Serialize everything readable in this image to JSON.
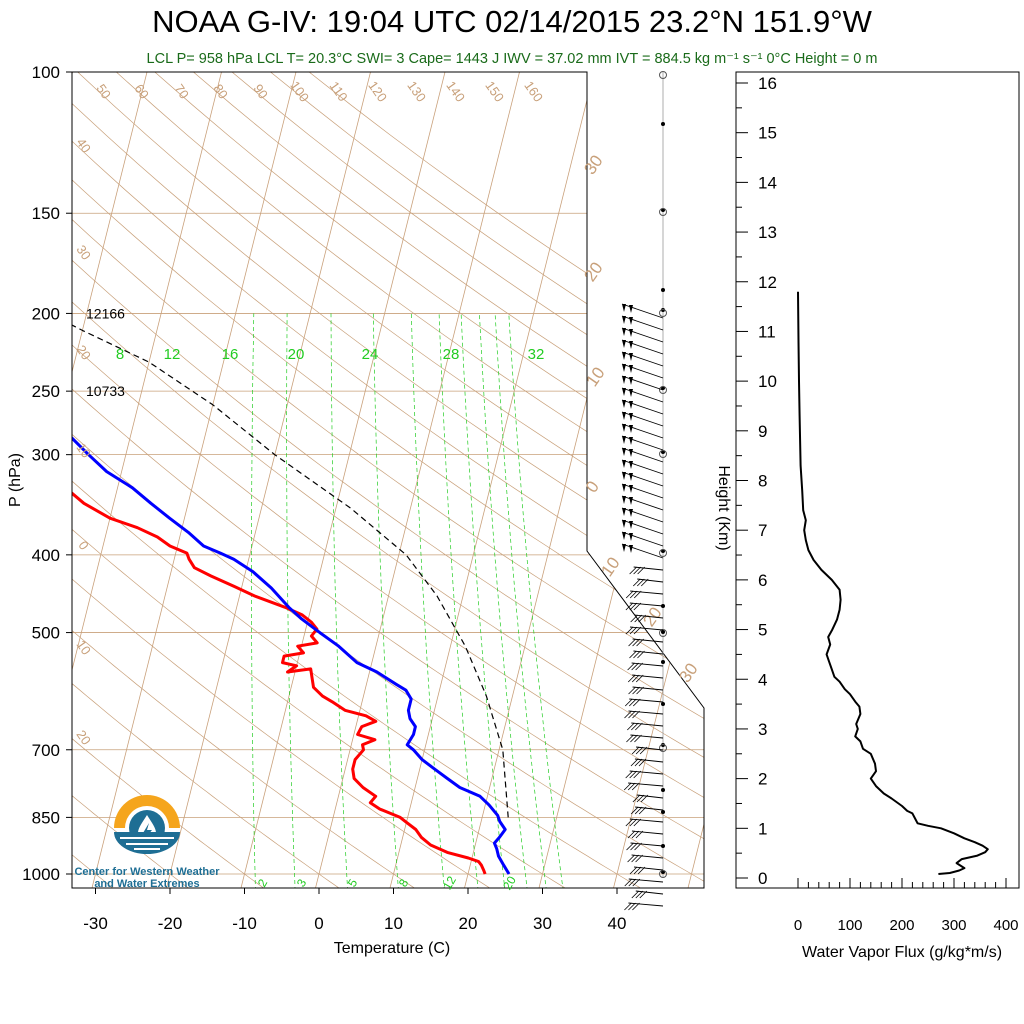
{
  "title_text": "NOAA G-IV: 19:04 UTC 02/14/2015  23.2°N 151.9°W",
  "subtitle": "LCL P= 958 hPa  LCL T= 20.3°C  SWI= 3  Cape= 1443 J  IWV = 37.02 mm  IVT = 884.5 kg m⁻¹ s⁻¹  0°C Height = 0 m",
  "logo": {
    "line1": "Center for Western Weather",
    "line2": "and Water Extremes"
  },
  "colors": {
    "temperature": "#ff0000",
    "dewpoint": "#0000ff",
    "parcel": "#000000",
    "isotherm_adiabat": "#c8a07a",
    "mixing_ratio": "#22cc22",
    "subtitle": "#1a6b1a",
    "logo_orange": "#f5a51c",
    "logo_blue": "#1e6e94"
  },
  "chart_data": [
    {
      "type": "line",
      "subtype": "skew-T log-P",
      "xlabel": "Temperature (C)",
      "ylabel": "P (hPa)",
      "x_ticks": [
        "-30",
        "-20",
        "-10",
        "0",
        "10",
        "20",
        "30",
        "40"
      ],
      "y_ticks": [
        "100",
        "150",
        "200",
        "250",
        "300",
        "400",
        "500",
        "700",
        "850",
        "1000"
      ],
      "heights_labels": [
        {
          "p": 200,
          "label": "12166"
        },
        {
          "p": 250,
          "label": "10733"
        }
      ],
      "mixing_ratio_top_labels": [
        "8",
        "12",
        "16",
        "20",
        "24",
        "28",
        "32"
      ],
      "mixing_ratio_bottom_labels": [
        "2",
        "3",
        "5",
        "8",
        "12",
        "20"
      ],
      "dry_adiabat_labels": [
        "50",
        "60",
        "70",
        "80",
        "90",
        "100",
        "110",
        "120",
        "130",
        "140",
        "150",
        "160"
      ],
      "left_edge_labels": [
        "40",
        "30",
        "20",
        "10",
        "0",
        "10",
        "20"
      ],
      "right_edge_labels": [
        "30",
        "20",
        "10",
        "0",
        "10",
        "20",
        "30"
      ],
      "series": [
        {
          "name": "Temperature",
          "points": [
            [
              22.3,
              1000
            ],
            [
              22.0,
              990
            ],
            [
              21.5,
              975
            ],
            [
              21.0,
              965
            ],
            [
              19.5,
              955
            ],
            [
              16.5,
              940
            ],
            [
              14.0,
              920
            ],
            [
              12.5,
              900
            ],
            [
              11.5,
              880
            ],
            [
              10.0,
              862
            ],
            [
              9.0,
              850
            ],
            [
              6.0,
              830
            ],
            [
              4.5,
              815
            ],
            [
              5.0,
              800
            ],
            [
              3.0,
              780
            ],
            [
              1.5,
              760
            ],
            [
              1.0,
              740
            ],
            [
              1.0,
              720
            ],
            [
              1.8,
              700
            ],
            [
              1.5,
              690
            ],
            [
              3.0,
              680
            ],
            [
              0.5,
              670
            ],
            [
              0.8,
              655
            ],
            [
              2.5,
              645
            ],
            [
              1.0,
              635
            ],
            [
              -2.0,
              625
            ],
            [
              -4.0,
              610
            ],
            [
              -5.5,
              600
            ],
            [
              -7.0,
              585
            ],
            [
              -7.5,
              570
            ],
            [
              -8.0,
              555
            ],
            [
              -11.0,
              560
            ],
            [
              -10.0,
              550
            ],
            [
              -12.0,
              545
            ],
            [
              -12.0,
              535
            ],
            [
              -9.5,
              530
            ],
            [
              -10.5,
              520
            ],
            [
              -8.0,
              515
            ],
            [
              -9.0,
              505
            ],
            [
              -8.5,
              495
            ],
            [
              -9.5,
              485
            ],
            [
              -11.0,
              475
            ],
            [
              -13.5,
              465
            ],
            [
              -18.0,
              450
            ],
            [
              -21.0,
              438
            ],
            [
              -24.5,
              425
            ],
            [
              -27.0,
              415
            ],
            [
              -28.0,
              405
            ],
            [
              -28.5,
              398
            ],
            [
              -31.0,
              390
            ],
            [
              -33.0,
              380
            ],
            [
              -36.0,
              370
            ],
            [
              -40.0,
              360
            ],
            [
              -44.0,
              345
            ],
            [
              -48.0,
              325
            ],
            [
              -52.0,
              305
            ],
            [
              -56.0,
              285
            ],
            [
              -57.5,
              270
            ],
            [
              -60.0,
              250
            ],
            [
              -61.0,
              240
            ],
            [
              -62.0,
              230
            ],
            [
              -63.0,
              220
            ],
            [
              -64.0,
              210
            ],
            [
              -65.0,
              200
            ]
          ]
        },
        {
          "name": "Dewpoint",
          "points": [
            [
              25.5,
              1000
            ],
            [
              24.5,
              975
            ],
            [
              23.5,
              950
            ],
            [
              23.0,
              930
            ],
            [
              22.5,
              915
            ],
            [
              23.0,
              900
            ],
            [
              23.5,
              880
            ],
            [
              22.5,
              860
            ],
            [
              22.0,
              845
            ],
            [
              20.5,
              820
            ],
            [
              19.0,
              800
            ],
            [
              16.0,
              780
            ],
            [
              14.0,
              760
            ],
            [
              12.0,
              740
            ],
            [
              10.0,
              720
            ],
            [
              8.5,
              700
            ],
            [
              7.5,
              690
            ],
            [
              8.0,
              670
            ],
            [
              8.0,
              655
            ],
            [
              7.0,
              640
            ],
            [
              6.5,
              625
            ],
            [
              6.5,
              605
            ],
            [
              5.5,
              590
            ],
            [
              4.0,
              580
            ],
            [
              1.0,
              560
            ],
            [
              -2.0,
              545
            ],
            [
              -5.0,
              520
            ],
            [
              -8.0,
              500
            ],
            [
              -11.0,
              480
            ],
            [
              -13.0,
              465
            ],
            [
              -16.0,
              440
            ],
            [
              -19.0,
              420
            ],
            [
              -22.0,
              405
            ],
            [
              -24.0,
              398
            ],
            [
              -26.5,
              390
            ],
            [
              -29.0,
              375
            ],
            [
              -32.0,
              360
            ],
            [
              -35.0,
              345
            ],
            [
              -38.0,
              330
            ],
            [
              -42.0,
              315
            ],
            [
              -45.0,
              300
            ],
            [
              -48.0,
              285
            ],
            [
              -51.5,
              270
            ],
            [
              -54.5,
              255
            ],
            [
              -57.5,
              240
            ],
            [
              -60.5,
              225
            ],
            [
              -63.0,
              212
            ],
            [
              -65.0,
              205
            ],
            [
              -66.0,
              200
            ]
          ]
        },
        {
          "name": "Parcel",
          "points": [
            [
              23.5,
              850
            ],
            [
              20.5,
              700
            ],
            [
              16.5,
              600
            ],
            [
              12.0,
              520
            ],
            [
              6.5,
              450
            ],
            [
              1.0,
              400
            ],
            [
              -8.0,
              350
            ],
            [
              -20.0,
              300
            ],
            [
              -30.0,
              260
            ],
            [
              -40.0,
              230
            ],
            [
              -50.0,
              210
            ],
            [
              -55.0,
              200
            ]
          ]
        }
      ]
    },
    {
      "type": "line",
      "xlabel": "Water Vapor Flux (g/kg*m/s)",
      "ylabel": "Height (Km)",
      "xlim": [
        0,
        400
      ],
      "ylim": [
        0,
        16
      ],
      "x_ticks": [
        "0",
        "100",
        "200",
        "300",
        "400"
      ],
      "y_ticks": [
        "0",
        "1",
        "2",
        "3",
        "4",
        "5",
        "6",
        "7",
        "8",
        "9",
        "10",
        "11",
        "12",
        "13",
        "14",
        "15",
        "16"
      ],
      "points": [
        [
          270,
          0.08
        ],
        [
          292,
          0.1
        ],
        [
          310,
          0.15
        ],
        [
          320,
          0.2
        ],
        [
          305,
          0.3
        ],
        [
          315,
          0.38
        ],
        [
          345,
          0.45
        ],
        [
          360,
          0.52
        ],
        [
          365,
          0.58
        ],
        [
          355,
          0.65
        ],
        [
          340,
          0.72
        ],
        [
          320,
          0.8
        ],
        [
          300,
          0.9
        ],
        [
          275,
          1.0
        ],
        [
          250,
          1.05
        ],
        [
          230,
          1.1
        ],
        [
          225,
          1.2
        ],
        [
          220,
          1.3
        ],
        [
          210,
          1.35
        ],
        [
          200,
          1.45
        ],
        [
          180,
          1.6
        ],
        [
          165,
          1.7
        ],
        [
          150,
          1.85
        ],
        [
          140,
          2.0
        ],
        [
          150,
          2.15
        ],
        [
          148,
          2.3
        ],
        [
          140,
          2.5
        ],
        [
          125,
          2.6
        ],
        [
          120,
          2.75
        ],
        [
          110,
          2.85
        ],
        [
          115,
          3.0
        ],
        [
          112,
          3.1
        ],
        [
          120,
          3.3
        ],
        [
          118,
          3.45
        ],
        [
          110,
          3.55
        ],
        [
          100,
          3.7
        ],
        [
          90,
          3.8
        ],
        [
          80,
          3.95
        ],
        [
          70,
          4.05
        ],
        [
          65,
          4.2
        ],
        [
          60,
          4.35
        ],
        [
          55,
          4.5
        ],
        [
          62,
          4.7
        ],
        [
          58,
          4.85
        ],
        [
          66,
          5.0
        ],
        [
          75,
          5.2
        ],
        [
          80,
          5.4
        ],
        [
          82,
          5.6
        ],
        [
          80,
          5.8
        ],
        [
          65,
          6.0
        ],
        [
          45,
          6.2
        ],
        [
          30,
          6.4
        ],
        [
          20,
          6.6
        ],
        [
          15,
          6.8
        ],
        [
          12,
          7.0
        ],
        [
          15,
          7.2
        ],
        [
          10,
          7.4
        ],
        [
          8,
          7.8
        ],
        [
          5,
          8.3
        ],
        [
          4,
          8.8
        ],
        [
          3,
          9.3
        ],
        [
          2,
          10.0
        ],
        [
          1,
          10.8
        ],
        [
          0,
          11.8
        ]
      ]
    }
  ]
}
